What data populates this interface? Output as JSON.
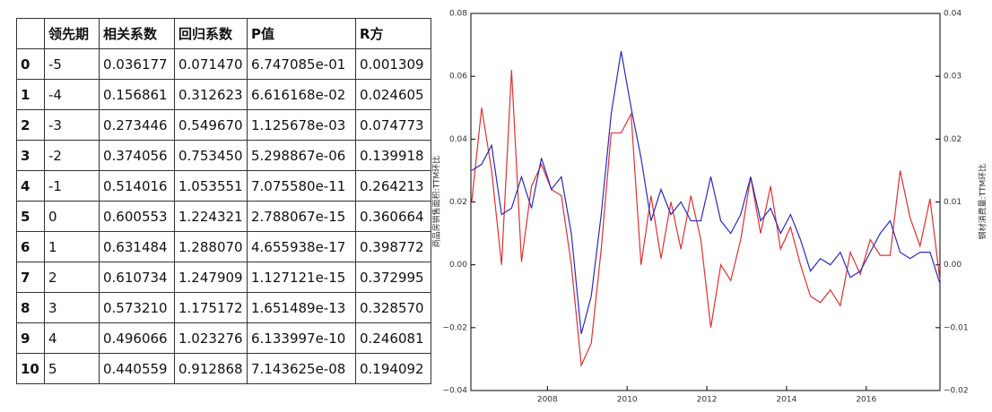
{
  "table": {
    "header": [
      "领先期",
      "相关系数",
      "回归系数",
      "P值",
      "R方"
    ],
    "rows": [
      [
        "0",
        "-5",
        "0.036177",
        "0.071470",
        "6.747085e-01",
        "0.001309"
      ],
      [
        "1",
        "-4",
        "0.156861",
        "0.312623",
        "6.616168e-02",
        "0.024605"
      ],
      [
        "2",
        "-3",
        "0.273446",
        "0.549670",
        "1.125678e-03",
        "0.074773"
      ],
      [
        "3",
        "-2",
        "0.374056",
        "0.753450",
        "5.298867e-06",
        "0.139918"
      ],
      [
        "4",
        "-1",
        "0.514016",
        "1.053551",
        "7.075580e-11",
        "0.264213"
      ],
      [
        "5",
        "0",
        "0.600553",
        "1.224321",
        "2.788067e-15",
        "0.360664"
      ],
      [
        "6",
        "1",
        "0.631484",
        "1.288070",
        "4.655938e-17",
        "0.398772"
      ],
      [
        "7",
        "2",
        "0.610734",
        "1.247909",
        "1.127121e-15",
        "0.372995"
      ],
      [
        "8",
        "3",
        "0.573210",
        "1.175172",
        "1.651489e-13",
        "0.328570"
      ],
      [
        "9",
        "4",
        "0.496066",
        "1.023276",
        "6.133997e-10",
        "0.246081"
      ],
      [
        "10",
        "5",
        "0.440559",
        "0.912868",
        "7.143625e-08",
        "0.194092"
      ]
    ]
  },
  "chart_data": {
    "type": "line",
    "ylabel": "商品房销售面积:TTM环比",
    "y2label": "钢材消费量:TTM环比",
    "x": [
      2006.1,
      2006.35,
      2006.6,
      2006.85,
      2007.1,
      2007.35,
      2007.6,
      2007.85,
      2008.1,
      2008.35,
      2008.6,
      2008.85,
      2009.1,
      2009.35,
      2009.6,
      2009.85,
      2010.1,
      2010.35,
      2010.6,
      2010.85,
      2011.1,
      2011.35,
      2011.6,
      2011.85,
      2012.1,
      2012.35,
      2012.6,
      2012.85,
      2013.1,
      2013.35,
      2013.6,
      2013.85,
      2014.1,
      2014.35,
      2014.6,
      2014.85,
      2015.1,
      2015.35,
      2015.6,
      2015.85,
      2016.1,
      2016.35,
      2016.6,
      2016.85,
      2017.1,
      2017.35,
      2017.6,
      2017.85
    ],
    "series": [
      {
        "color": "#e03030",
        "axis": "y",
        "values": [
          0.02,
          0.05,
          0.03,
          0.0,
          0.062,
          0.001,
          0.025,
          0.032,
          0.024,
          0.022,
          0.0,
          -0.032,
          -0.025,
          0.005,
          0.042,
          0.042,
          0.048,
          0.0,
          0.022,
          0.002,
          0.02,
          0.005,
          0.022,
          0.008,
          -0.02,
          0.0,
          -0.005,
          0.008,
          0.028,
          0.01,
          0.025,
          0.005,
          0.012,
          0.0,
          -0.01,
          -0.012,
          -0.008,
          -0.013,
          0.004,
          -0.003,
          0.008,
          0.003,
          0.003,
          0.03,
          0.015,
          0.006,
          0.021,
          -0.005
        ]
      },
      {
        "color": "#2a2ac0",
        "axis": "y2",
        "values": [
          0.015,
          0.016,
          0.019,
          0.008,
          0.009,
          0.014,
          0.009,
          0.017,
          0.012,
          0.014,
          0.005,
          -0.011,
          -0.005,
          0.008,
          0.024,
          0.034,
          0.025,
          0.017,
          0.007,
          0.012,
          0.008,
          0.01,
          0.007,
          0.007,
          0.014,
          0.007,
          0.005,
          0.008,
          0.014,
          0.007,
          0.009,
          0.005,
          0.008,
          0.004,
          -0.001,
          0.001,
          0.0,
          0.002,
          -0.002,
          -0.001,
          0.002,
          0.005,
          0.007,
          0.002,
          0.001,
          0.002,
          0.002,
          -0.003
        ]
      }
    ],
    "xlim": [
      2006.08,
      2017.85
    ],
    "xticks": [
      2008,
      2010,
      2012,
      2014,
      2016
    ],
    "ylim": [
      -0.04,
      0.08
    ],
    "yticks": [
      {
        "value": -0.04,
        "label": "−0.04"
      },
      {
        "value": -0.02,
        "label": "−0.02"
      },
      {
        "value": 0,
        "label": "0.00"
      },
      0.02,
      0.04,
      0.06,
      0.08
    ],
    "y2lim": [
      -0.02,
      0.04
    ],
    "y2ticks": [
      {
        "value": -0.02,
        "label": "−0.02"
      },
      {
        "value": -0.01,
        "label": "−0.01"
      },
      {
        "value": 0,
        "label": "0.00"
      },
      0.01,
      0.02,
      0.03,
      0.04
    ],
    "grid": false
  }
}
